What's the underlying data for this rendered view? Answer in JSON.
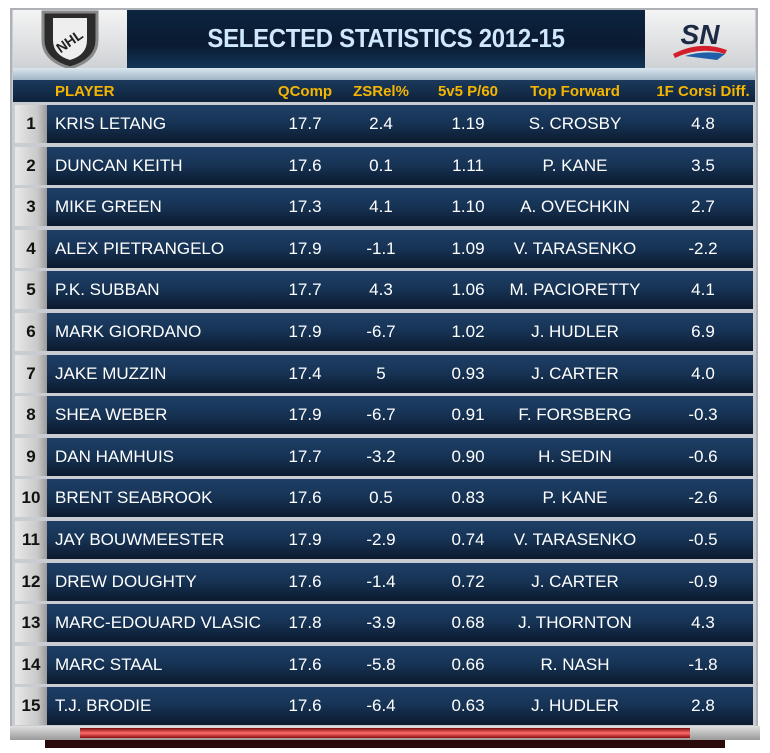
{
  "header": {
    "title": "SELECTED STATISTICS 2012-15",
    "left_logo": "NHL",
    "right_logo": "SN"
  },
  "columns": [
    "PLAYER",
    "QComp",
    "ZSRel%",
    "5v5 P/60",
    "Top Forward",
    "1F Corsi Diff."
  ],
  "rows": [
    {
      "rank": "1",
      "player": "KRIS LETANG",
      "qcomp": "17.7",
      "zsrel": "2.4",
      "p60": "1.19",
      "forward": "S. CROSBY",
      "corsi": "4.8"
    },
    {
      "rank": "2",
      "player": "DUNCAN KEITH",
      "qcomp": "17.6",
      "zsrel": "0.1",
      "p60": "1.11",
      "forward": "P. KANE",
      "corsi": "3.5"
    },
    {
      "rank": "3",
      "player": "MIKE GREEN",
      "qcomp": "17.3",
      "zsrel": "4.1",
      "p60": "1.10",
      "forward": "A. OVECHKIN",
      "corsi": "2.7"
    },
    {
      "rank": "4",
      "player": "ALEX PIETRANGELO",
      "qcomp": "17.9",
      "zsrel": "-1.1",
      "p60": "1.09",
      "forward": "V. TARASENKO",
      "corsi": "-2.2"
    },
    {
      "rank": "5",
      "player": "P.K. SUBBAN",
      "qcomp": "17.7",
      "zsrel": "4.3",
      "p60": "1.06",
      "forward": "M. PACIORETTY",
      "corsi": "4.1"
    },
    {
      "rank": "6",
      "player": "MARK GIORDANO",
      "qcomp": "17.9",
      "zsrel": "-6.7",
      "p60": "1.02",
      "forward": "J. HUDLER",
      "corsi": "6.9"
    },
    {
      "rank": "7",
      "player": "JAKE MUZZIN",
      "qcomp": "17.4",
      "zsrel": "5",
      "p60": "0.93",
      "forward": "J. CARTER",
      "corsi": "4.0"
    },
    {
      "rank": "8",
      "player": "SHEA WEBER",
      "qcomp": "17.9",
      "zsrel": "-6.7",
      "p60": "0.91",
      "forward": "F. FORSBERG",
      "corsi": "-0.3"
    },
    {
      "rank": "9",
      "player": "DAN HAMHUIS",
      "qcomp": "17.7",
      "zsrel": "-3.2",
      "p60": "0.90",
      "forward": "H. SEDIN",
      "corsi": "-0.6"
    },
    {
      "rank": "10",
      "player": "BRENT SEABROOK",
      "qcomp": "17.6",
      "zsrel": "0.5",
      "p60": "0.83",
      "forward": "P. KANE",
      "corsi": "-2.6"
    },
    {
      "rank": "11",
      "player": "JAY BOUWMEESTER",
      "qcomp": "17.9",
      "zsrel": "-2.9",
      "p60": "0.74",
      "forward": "V. TARASENKO",
      "corsi": "-0.5"
    },
    {
      "rank": "12",
      "player": "DREW DOUGHTY",
      "qcomp": "17.6",
      "zsrel": "-1.4",
      "p60": "0.72",
      "forward": "J. CARTER",
      "corsi": "-0.9"
    },
    {
      "rank": "13",
      "player": "MARC-EDOUARD VLASIC",
      "qcomp": "17.8",
      "zsrel": "-3.9",
      "p60": "0.68",
      "forward": "J. THORNTON",
      "corsi": "4.3"
    },
    {
      "rank": "14",
      "player": "MARC STAAL",
      "qcomp": "17.6",
      "zsrel": "-5.8",
      "p60": "0.66",
      "forward": "R. NASH",
      "corsi": "-1.8"
    },
    {
      "rank": "15",
      "player": "T.J. BRODIE",
      "qcomp": "17.6",
      "zsrel": "-6.4",
      "p60": "0.63",
      "forward": "J. HUDLER",
      "corsi": "2.8"
    }
  ],
  "colors": {
    "header_text": "#f5b500",
    "title": "#cfe8fb",
    "row_bg": "#173456",
    "accent_red": "#d21f2b"
  }
}
